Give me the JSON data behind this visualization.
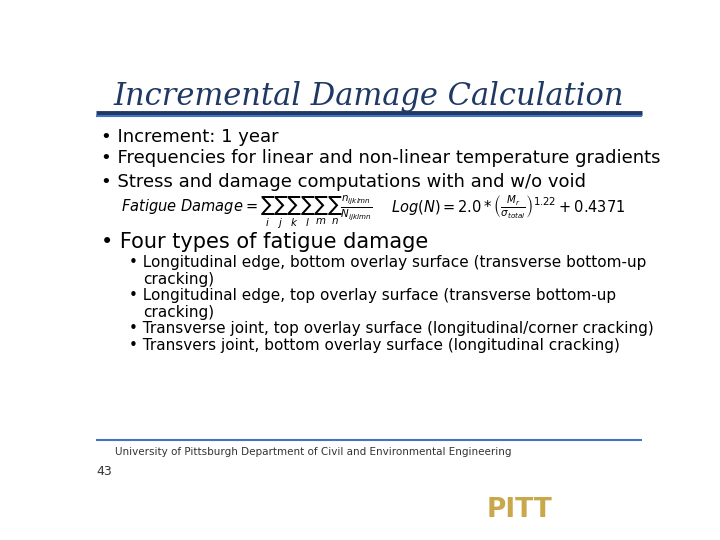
{
  "title": "Incremental Damage Calculation",
  "title_color": "#1F3864",
  "title_fontsize": 22,
  "bg_color": "#FFFFFF",
  "header_bar_color1": "#1F3864",
  "header_bar_color2": "#4472C4",
  "bullet1": "Increment: 1 year",
  "bullet2": "Frequencies for linear and non-linear temperature gradients",
  "bullet3": "Stress and damage computations with and w/o void",
  "bullet4": "Four types of fatigue damage",
  "sub1a": "Longitudinal edge, bottom overlay surface (transverse bottom-up",
  "sub1b": "cracking)",
  "sub2a": "Longitudinal edge, top overlay surface (transverse bottom-up",
  "sub2b": "cracking)",
  "sub3": "Transverse joint, top overlay surface (longitudinal/corner cracking)",
  "sub4": "Transvers joint, bottom overlay surface (longitudinal cracking)",
  "footer_text": "University of Pittsburgh Department of Civil and Environmental Engineering",
  "footer_page": "43",
  "pitt_bg": "#1F3864",
  "pitt_text": "PITT",
  "pitt_gold": "#C9A84C",
  "bullet_color": "#000000",
  "bullet_fontsize": 13,
  "sub_fontsize": 11
}
